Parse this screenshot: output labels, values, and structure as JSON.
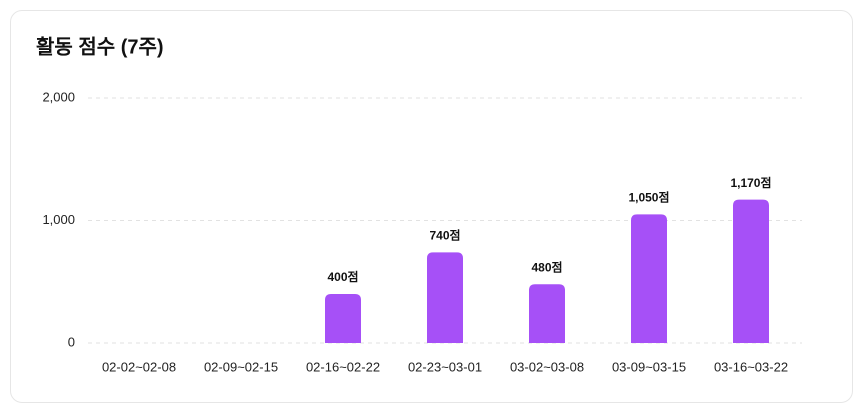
{
  "chart_data": {
    "type": "bar",
    "title": "활동 점수 (7주)",
    "categories": [
      "02-02~02-08",
      "02-09~02-15",
      "02-16~02-22",
      "02-23~03-01",
      "03-02~03-08",
      "03-09~03-15",
      "03-16~03-22"
    ],
    "values": [
      0,
      0,
      400,
      740,
      480,
      1050,
      1170
    ],
    "value_labels": [
      null,
      null,
      "400점",
      "740점",
      "480점",
      "1,050점",
      "1,170점"
    ],
    "color": "#a650f7",
    "ylim": [
      0,
      2000
    ],
    "yticks": [
      0,
      {
        "value": 1000,
        "label": "1,000"
      },
      {
        "value": 2000,
        "label": "2,000"
      }
    ],
    "grid": true
  }
}
